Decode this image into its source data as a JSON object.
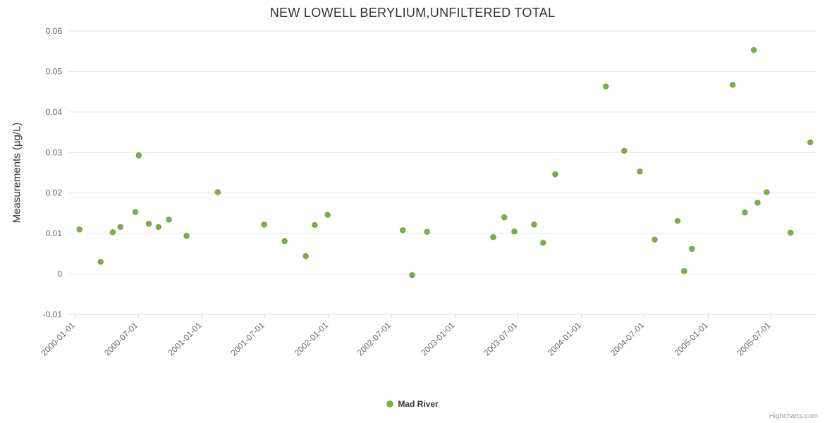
{
  "credits_label": "Highcharts.com",
  "chart_data": {
    "type": "scatter",
    "title": "NEW LOWELL BERYLIUM,UNFILTERED TOTAL",
    "xlabel": "",
    "ylabel": "Measurements (µg/L)",
    "ylim": [
      -0.01,
      0.06
    ],
    "yticks": [
      -0.01,
      0,
      0.01,
      0.02,
      0.03,
      0.04,
      0.05,
      0.06
    ],
    "xlim": [
      "1999-12-12",
      "2005-11-09"
    ],
    "xticks": [
      "2000-01-01",
      "2000-07-01",
      "2001-01-01",
      "2001-07-01",
      "2002-01-01",
      "2002-07-01",
      "2003-01-01",
      "2003-07-01",
      "2004-01-01",
      "2004-07-01",
      "2005-01-01",
      "2005-07-01"
    ],
    "grid": true,
    "legend_position": "bottom",
    "legend": {
      "items": [
        {
          "label": "Mad River",
          "color": "#7cb13d"
        }
      ]
    },
    "series": [
      {
        "name": "Mad River",
        "color": "#7cb13d",
        "points": [
          [
            "2000-01-13",
            0.011
          ],
          [
            "2000-03-14",
            0.003
          ],
          [
            "2000-04-18",
            0.0103
          ],
          [
            "2000-05-10",
            0.0116
          ],
          [
            "2000-06-22",
            0.0153
          ],
          [
            "2000-07-02",
            0.0293
          ],
          [
            "2000-07-31",
            0.0124
          ],
          [
            "2000-08-28",
            0.0116
          ],
          [
            "2000-09-27",
            0.0134
          ],
          [
            "2000-11-17",
            0.0094
          ],
          [
            "2001-02-15",
            0.0202
          ],
          [
            "2001-06-29",
            0.0122
          ],
          [
            "2001-08-27",
            0.0081
          ],
          [
            "2001-10-27",
            0.0044
          ],
          [
            "2001-11-22",
            0.0121
          ],
          [
            "2001-12-29",
            0.0146
          ],
          [
            "2002-08-03",
            0.0108
          ],
          [
            "2002-08-30",
            -0.0003
          ],
          [
            "2002-10-12",
            0.0104
          ],
          [
            "2003-04-21",
            0.0091
          ],
          [
            "2003-05-23",
            0.014
          ],
          [
            "2003-06-21",
            0.0105
          ],
          [
            "2003-08-17",
            0.0122
          ],
          [
            "2003-09-12",
            0.0077
          ],
          [
            "2003-10-17",
            0.0246
          ],
          [
            "2004-03-11",
            0.0463
          ],
          [
            "2004-05-03",
            0.0304
          ],
          [
            "2004-06-17",
            0.0253
          ],
          [
            "2004-07-30",
            0.0085
          ],
          [
            "2004-10-04",
            0.0131
          ],
          [
            "2004-10-23",
            0.0007
          ],
          [
            "2004-11-14",
            0.0062
          ],
          [
            "2005-03-12",
            0.0467
          ],
          [
            "2005-04-16",
            0.0152
          ],
          [
            "2005-05-12",
            0.0553
          ],
          [
            "2005-05-23",
            0.0176
          ],
          [
            "2005-06-18",
            0.0202
          ],
          [
            "2005-08-26",
            0.0102
          ],
          [
            "2005-10-22",
            0.0325
          ]
        ]
      }
    ]
  }
}
